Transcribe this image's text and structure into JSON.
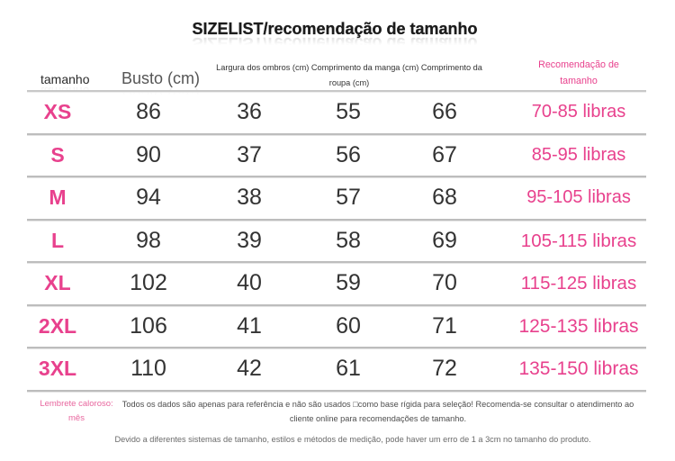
{
  "title": "SIZELIST/recomendação de tamanho",
  "header": {
    "size": "tamanho",
    "bust": "Busto (cm)",
    "shoulder": "Largura dos ombros (cm)",
    "sleeve": "Comprimento da manga (cm)",
    "length": "Comprimento da roupa (cm)",
    "recommendation": "Recomendação de tamanho"
  },
  "rows": [
    {
      "size": "XS",
      "bust": 86,
      "shoulder": 36,
      "sleeve": 55,
      "length": 66,
      "recommendation": "70-85 libras"
    },
    {
      "size": "S",
      "bust": 90,
      "shoulder": 37,
      "sleeve": 56,
      "length": 67,
      "recommendation": "85-95 libras"
    },
    {
      "size": "M",
      "bust": 94,
      "shoulder": 38,
      "sleeve": 57,
      "length": 68,
      "recommendation": "95-105 libras"
    },
    {
      "size": "L",
      "bust": 98,
      "shoulder": 39,
      "sleeve": 58,
      "length": 69,
      "recommendation": "105-115 libras"
    },
    {
      "size": "XL",
      "bust": 102,
      "shoulder": 40,
      "sleeve": 59,
      "length": 70,
      "recommendation": "115-125 libras"
    },
    {
      "size": "2XL",
      "bust": 106,
      "shoulder": 41,
      "sleeve": 60,
      "length": 71,
      "recommendation": "125-135 libras"
    },
    {
      "size": "3XL",
      "bust": 110,
      "shoulder": 42,
      "sleeve": 61,
      "length": 72,
      "recommendation": "135-150 libras"
    }
  ],
  "footer": {
    "reminder_label": "Lembrete caloroso: mês",
    "note": "Todos os dados são apenas para referência e não são usados □como base rígida para seleção! Recomenda-se consultar o atendimento ao cliente online para recomendações de tamanho.",
    "disclaimer": "Devido a diferentes sistemas de tamanho, estilos e métodos de medição, pode haver um erro de 1 a 3cm no tamanho do produto."
  },
  "colors": {
    "accent": "#e8418d",
    "reminder": "#e8669e",
    "text": "#333333",
    "note": "#4d4d4d",
    "muted": "#6a6a6a",
    "rule": "#bdbdbd",
    "title": "#1c1c1c"
  }
}
